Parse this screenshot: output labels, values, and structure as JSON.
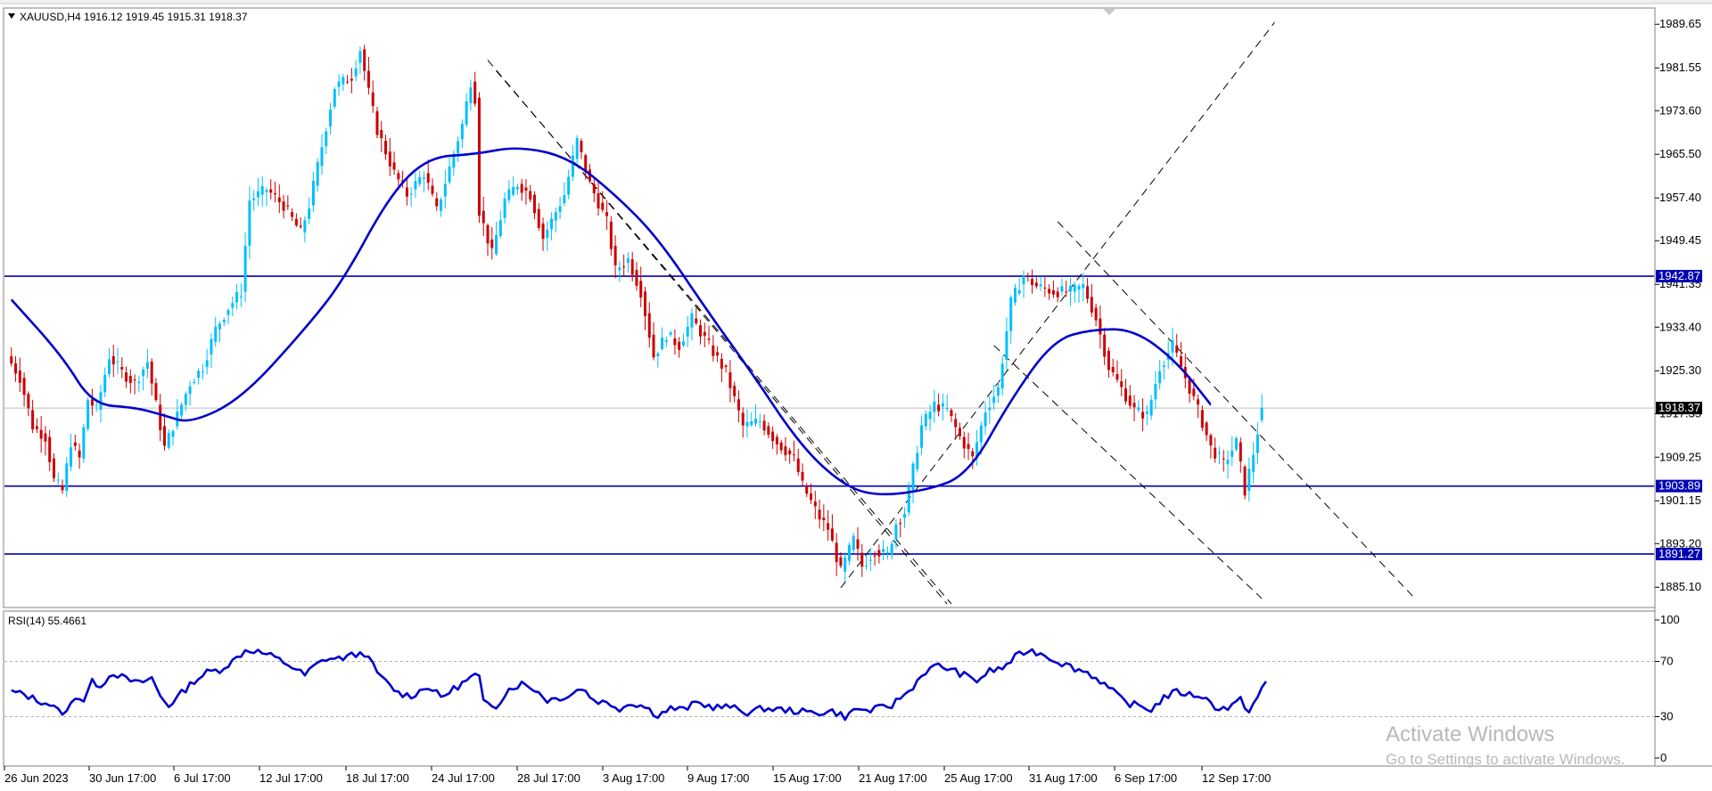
{
  "symbol_header": "XAUUSD,H4  1916.12 1919.45 1915.31 1918.37",
  "rsi_header": "RSI(14) 55.4661",
  "watermark": {
    "title": "Activate Windows",
    "subtitle": "Go to Settings to activate Windows."
  },
  "colors": {
    "bull": "#00bfff",
    "bear": "#cc0000",
    "ma": "#0000cc",
    "hline": "#0000b4",
    "rsi": "#0000cc",
    "price_tag_bg": "#000000",
    "level_tag_bg": "#0000b4"
  },
  "chart_data": [
    {
      "type": "candlestick",
      "symbol": "XAUUSD",
      "timeframe": "H4",
      "ohlc_header": {
        "open": 1916.12,
        "high": 1919.45,
        "low": 1915.31,
        "close": 1918.37
      },
      "ylim": [
        1881.5,
        1992.5
      ],
      "y_ticks": [
        "1989.65",
        "1981.55",
        "1973.60",
        "1965.50",
        "1957.40",
        "1949.45",
        "1941.35",
        "1933.40",
        "1925.30",
        "1917.35",
        "1909.25",
        "1901.15",
        "1893.20",
        "1885.10"
      ],
      "x_ticks": [
        "26 Jun 2023",
        "30 Jun 17:00",
        "6 Jul 17:00",
        "12 Jul 17:00",
        "18 Jul 17:00",
        "24 Jul 17:00",
        "28 Jul 17:00",
        "3 Aug 17:00",
        "9 Aug 17:00",
        "15 Aug 17:00",
        "21 Aug 17:00",
        "25 Aug 17:00",
        "31 Aug 17:00",
        "6 Sep 17:00",
        "12 Sep 17:00"
      ],
      "current_price": "1918.37",
      "horizontal_levels": [
        "1942.87",
        "1903.89",
        "1891.27"
      ],
      "moving_average": [
        [
          1,
          1938.5
        ],
        [
          13,
          1928
        ],
        [
          20,
          1919
        ],
        [
          30,
          1918.5
        ],
        [
          37,
          1917
        ],
        [
          43,
          1915.5
        ],
        [
          55,
          1920
        ],
        [
          70,
          1933
        ],
        [
          79,
          1942
        ],
        [
          90,
          1958
        ],
        [
          99,
          1965
        ],
        [
          110,
          1965.5
        ],
        [
          120,
          1967
        ],
        [
          132,
          1965
        ],
        [
          143,
          1958
        ],
        [
          153,
          1950
        ],
        [
          165,
          1936
        ],
        [
          175,
          1925
        ],
        [
          186,
          1912
        ],
        [
          195,
          1905
        ],
        [
          203,
          1902
        ],
        [
          216,
          1903
        ],
        [
          226,
          1906
        ],
        [
          236,
          1920
        ],
        [
          246,
          1931
        ],
        [
          255,
          1933
        ],
        [
          265,
          1933
        ],
        [
          275,
          1927
        ],
        [
          283,
          1919
        ]
      ],
      "price_path": [
        [
          1,
          1928
        ],
        [
          4,
          1924
        ],
        [
          7,
          1915
        ],
        [
          10,
          1913
        ],
        [
          12,
          1905
        ],
        [
          14,
          1903
        ],
        [
          16,
          1912
        ],
        [
          18,
          1909
        ],
        [
          20,
          1920
        ],
        [
          22,
          1918
        ],
        [
          25,
          1928
        ],
        [
          28,
          1925
        ],
        [
          31,
          1923
        ],
        [
          34,
          1927
        ],
        [
          36,
          1919
        ],
        [
          38,
          1911
        ],
        [
          40,
          1915
        ],
        [
          42,
          1919
        ],
        [
          44,
          1923
        ],
        [
          47,
          1926
        ],
        [
          50,
          1933
        ],
        [
          53,
          1937
        ],
        [
          56,
          1940
        ],
        [
          58,
          1957
        ],
        [
          62,
          1959
        ],
        [
          66,
          1956
        ],
        [
          70,
          1951
        ],
        [
          72,
          1956
        ],
        [
          75,
          1967
        ],
        [
          78,
          1978
        ],
        [
          82,
          1980
        ],
        [
          84,
          1985
        ],
        [
          86,
          1977
        ],
        [
          88,
          1970
        ],
        [
          92,
          1962
        ],
        [
          95,
          1958
        ],
        [
          99,
          1962
        ],
        [
          102,
          1955
        ],
        [
          105,
          1963
        ],
        [
          108,
          1971
        ],
        [
          110,
          1979
        ],
        [
          111,
          1976
        ],
        [
          112,
          1955
        ],
        [
          115,
          1947
        ],
        [
          118,
          1957
        ],
        [
          121,
          1960
        ],
        [
          124,
          1958
        ],
        [
          127,
          1950
        ],
        [
          132,
          1958
        ],
        [
          135,
          1968
        ],
        [
          138,
          1960
        ],
        [
          142,
          1953
        ],
        [
          144,
          1944
        ],
        [
          147,
          1946
        ],
        [
          150,
          1940
        ],
        [
          153,
          1928
        ],
        [
          156,
          1932
        ],
        [
          159,
          1930
        ],
        [
          162,
          1935
        ],
        [
          166,
          1930
        ],
        [
          170,
          1925
        ],
        [
          174,
          1915
        ],
        [
          178,
          1916
        ],
        [
          182,
          1912
        ],
        [
          186,
          1909
        ],
        [
          188,
          1904
        ],
        [
          192,
          1898
        ],
        [
          194,
          1896
        ],
        [
          197,
          1888
        ],
        [
          200,
          1894
        ],
        [
          202,
          1889
        ],
        [
          205,
          1892
        ],
        [
          208,
          1891
        ],
        [
          210,
          1897
        ],
        [
          212,
          1899
        ],
        [
          214,
          1907
        ],
        [
          216,
          1915
        ],
        [
          219,
          1919
        ],
        [
          222,
          1918
        ],
        [
          225,
          1913
        ],
        [
          228,
          1909
        ],
        [
          231,
          1918
        ],
        [
          234,
          1922
        ],
        [
          237,
          1938
        ],
        [
          240,
          1943
        ],
        [
          243,
          1941
        ],
        [
          247,
          1940
        ],
        [
          251,
          1940
        ],
        [
          254,
          1941
        ],
        [
          257,
          1935
        ],
        [
          260,
          1926
        ],
        [
          263,
          1922
        ],
        [
          266,
          1918
        ],
        [
          269,
          1917
        ],
        [
          272,
          1926
        ],
        [
          275,
          1930
        ],
        [
          278,
          1924
        ],
        [
          281,
          1918
        ],
        [
          284,
          1911
        ],
        [
          287,
          1908
        ],
        [
          290,
          1912
        ],
        [
          292,
          1903
        ],
        [
          294,
          1910
        ],
        [
          296,
          1918
        ]
      ],
      "trendlines_note": "dashed descending/ascending channel lines"
    },
    {
      "type": "line",
      "indicator": "RSI(14)",
      "value": "55.4661",
      "ylim": [
        0,
        100
      ],
      "y_ticks": [
        "100",
        "70",
        "30",
        "0"
      ],
      "levels": [
        70,
        30
      ],
      "series": [
        [
          1,
          48
        ],
        [
          4,
          46
        ],
        [
          7,
          42
        ],
        [
          10,
          39
        ],
        [
          12,
          34
        ],
        [
          14,
          33
        ],
        [
          16,
          45
        ],
        [
          18,
          42
        ],
        [
          20,
          55
        ],
        [
          22,
          53
        ],
        [
          25,
          62
        ],
        [
          28,
          57
        ],
        [
          31,
          54
        ],
        [
          34,
          58
        ],
        [
          36,
          45
        ],
        [
          38,
          38
        ],
        [
          40,
          44
        ],
        [
          42,
          50
        ],
        [
          44,
          56
        ],
        [
          47,
          62
        ],
        [
          50,
          64
        ],
        [
          53,
          70
        ],
        [
          56,
          78
        ],
        [
          58,
          78
        ],
        [
          62,
          74
        ],
        [
          66,
          68
        ],
        [
          70,
          60
        ],
        [
          72,
          66
        ],
        [
          75,
          72
        ],
        [
          78,
          72
        ],
        [
          82,
          75
        ],
        [
          84,
          76
        ],
        [
          86,
          67
        ],
        [
          88,
          58
        ],
        [
          92,
          47
        ],
        [
          95,
          45
        ],
        [
          99,
          52
        ],
        [
          102,
          44
        ],
        [
          105,
          50
        ],
        [
          108,
          56
        ],
        [
          110,
          60
        ],
        [
          111,
          58
        ],
        [
          112,
          40
        ],
        [
          115,
          38
        ],
        [
          118,
          50
        ],
        [
          121,
          54
        ],
        [
          124,
          50
        ],
        [
          127,
          42
        ],
        [
          132,
          45
        ],
        [
          135,
          51
        ],
        [
          138,
          42
        ],
        [
          142,
          39
        ],
        [
          144,
          36
        ],
        [
          147,
          40
        ],
        [
          150,
          37
        ],
        [
          153,
          31
        ],
        [
          156,
          36
        ],
        [
          159,
          35
        ],
        [
          162,
          40
        ],
        [
          166,
          37
        ],
        [
          170,
          37
        ],
        [
          174,
          33
        ],
        [
          178,
          36
        ],
        [
          182,
          35
        ],
        [
          186,
          34
        ],
        [
          188,
          33
        ],
        [
          192,
          33
        ],
        [
          194,
          34
        ],
        [
          197,
          30
        ],
        [
          200,
          36
        ],
        [
          202,
          34
        ],
        [
          205,
          36
        ],
        [
          208,
          38
        ],
        [
          210,
          44
        ],
        [
          212,
          48
        ],
        [
          214,
          56
        ],
        [
          216,
          63
        ],
        [
          219,
          67
        ],
        [
          222,
          64
        ],
        [
          225,
          60
        ],
        [
          228,
          56
        ],
        [
          231,
          63
        ],
        [
          234,
          65
        ],
        [
          237,
          73
        ],
        [
          240,
          78
        ],
        [
          243,
          76
        ],
        [
          247,
          70
        ],
        [
          251,
          65
        ],
        [
          254,
          62
        ],
        [
          257,
          56
        ],
        [
          260,
          48
        ],
        [
          263,
          40
        ],
        [
          266,
          38
        ],
        [
          269,
          35
        ],
        [
          272,
          44
        ],
        [
          275,
          48
        ],
        [
          278,
          46
        ],
        [
          281,
          45
        ],
        [
          284,
          37
        ],
        [
          287,
          36
        ],
        [
          290,
          42
        ],
        [
          292,
          34
        ],
        [
          294,
          44
        ],
        [
          296,
          55
        ]
      ]
    }
  ]
}
